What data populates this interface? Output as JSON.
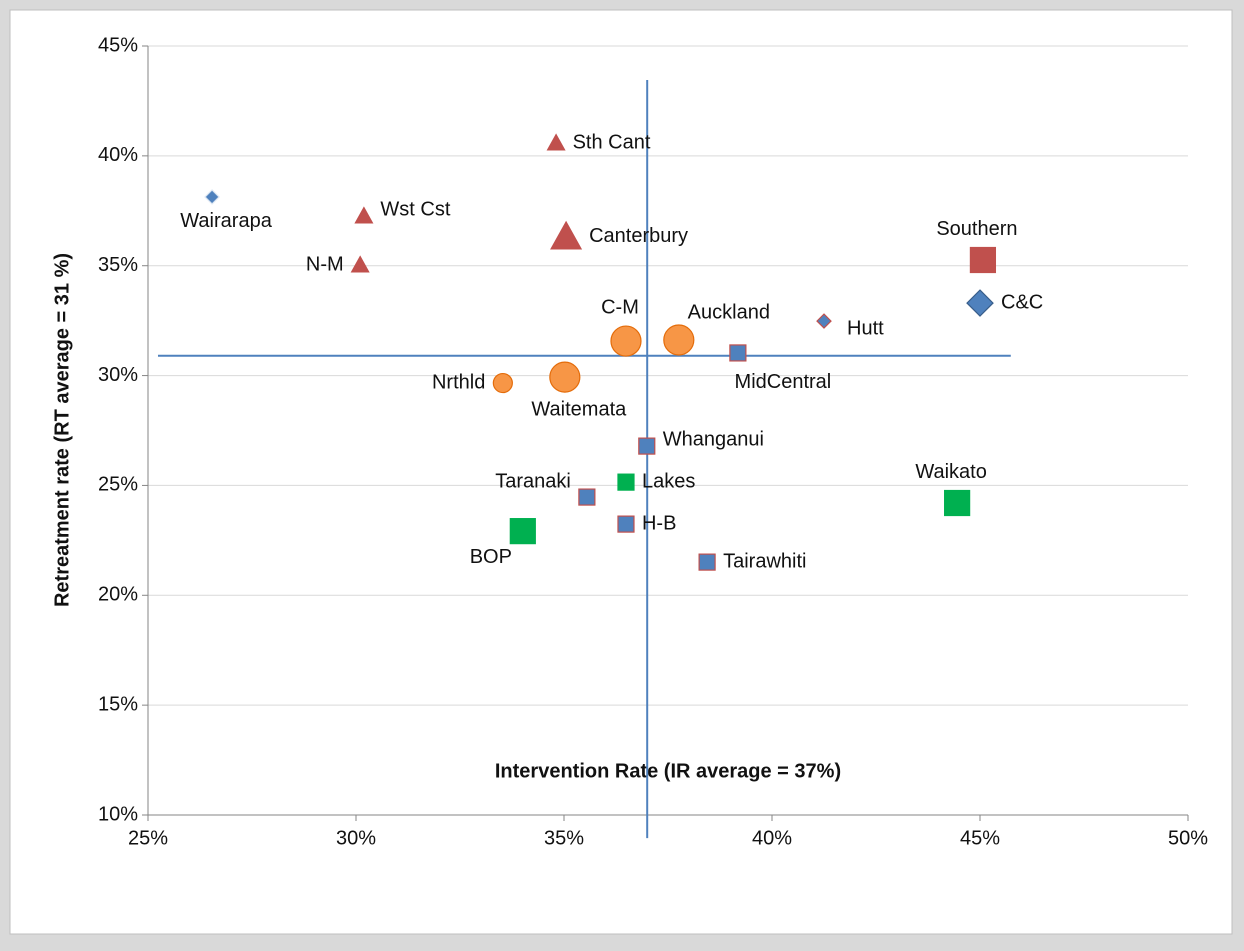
{
  "chart_data": {
    "type": "scatter",
    "xlabel": "Intervention Rate (IR average = 37%)",
    "ylabel": "Retreatment rate (RT average = 31 %)",
    "xlim": [
      25,
      50
    ],
    "ylim": [
      10,
      45
    ],
    "xticks": [
      {
        "value": 25,
        "label": "25%"
      },
      {
        "value": 30,
        "label": "30%"
      },
      {
        "value": 35,
        "label": "35%"
      },
      {
        "value": 40,
        "label": "40%"
      },
      {
        "value": 45,
        "label": "45%"
      },
      {
        "value": 50,
        "label": "50%"
      }
    ],
    "yticks": [
      {
        "value": 10,
        "label": "10%"
      },
      {
        "value": 15,
        "label": "15%"
      },
      {
        "value": 20,
        "label": "20%"
      },
      {
        "value": 25,
        "label": "25%"
      },
      {
        "value": 30,
        "label": "30%"
      },
      {
        "value": 35,
        "label": "35%"
      },
      {
        "value": 40,
        "label": "40%"
      },
      {
        "value": 45,
        "label": "45%"
      }
    ],
    "grid": true,
    "reference_lines": {
      "color": "#4f81bd",
      "x_average": 37,
      "x_average_span": [
        8.95,
        43.45
      ],
      "y_average": 30.9,
      "y_average_span": [
        25.24,
        45.74
      ]
    },
    "points": [
      {
        "label": "Wairarapa",
        "x": 26.54,
        "y": 38.13,
        "shape": "diamond",
        "size": "small",
        "color": "#4f81bd",
        "edge": "#dce6f2",
        "label_side": "below"
      },
      {
        "label": "Wst Cst",
        "x": 30.19,
        "y": 37.26,
        "shape": "triangle",
        "size": "small",
        "color": "#c0504d",
        "edge": "#c0504d",
        "label_side": "right-up"
      },
      {
        "label": "N-M",
        "x": 30.1,
        "y": 35.03,
        "shape": "triangle",
        "size": "small",
        "color": "#c0504d",
        "edge": "#c0504d",
        "label_side": "left"
      },
      {
        "label": "Sth Cant",
        "x": 34.81,
        "y": 40.58,
        "shape": "triangle",
        "size": "small",
        "color": "#c0504d",
        "edge": "#c0504d",
        "label_side": "right"
      },
      {
        "label": "Canterbury",
        "x": 35.05,
        "y": 36.31,
        "shape": "triangle",
        "size": "large",
        "color": "#c0504d",
        "edge": "#c0504d",
        "label_side": "right"
      },
      {
        "label": "Southern",
        "x": 45.07,
        "y": 35.26,
        "shape": "square",
        "size": "large",
        "color": "#c0504d",
        "edge": "#c0504d",
        "label_side": "above"
      },
      {
        "label": "C&C",
        "x": 45.0,
        "y": 33.3,
        "shape": "diamond",
        "size": "large",
        "color": "#4f81bd",
        "edge": "#385d8a",
        "label_side": "right"
      },
      {
        "label": "Hutt",
        "x": 41.25,
        "y": 32.48,
        "shape": "diamond",
        "size": "small",
        "color": "#4f81bd",
        "edge": "#c0504d",
        "label_side": "right-down"
      },
      {
        "label": "C-M",
        "x": 36.49,
        "y": 31.57,
        "shape": "circle",
        "size": "large",
        "color": "#f79646",
        "edge": "#e46c0a",
        "label_side": "above"
      },
      {
        "label": "Auckland",
        "x": 37.76,
        "y": 31.62,
        "shape": "circle",
        "size": "large",
        "color": "#f79646",
        "edge": "#e46c0a",
        "label_side": "above-right"
      },
      {
        "label": "MidCentral",
        "x": 39.18,
        "y": 31.03,
        "shape": "square",
        "size": "small",
        "color": "#4f81bd",
        "edge": "#c0504d",
        "label_side": "below-right"
      },
      {
        "label": "Nrthld",
        "x": 33.53,
        "y": 29.66,
        "shape": "circle",
        "size": "small",
        "color": "#f79646",
        "edge": "#e46c0a",
        "label_side": "left"
      },
      {
        "label": "Waitemata",
        "x": 35.02,
        "y": 29.93,
        "shape": "circle",
        "size": "large",
        "color": "#f79646",
        "edge": "#e46c0a",
        "label_side": "below"
      },
      {
        "label": "Whanganui",
        "x": 36.99,
        "y": 26.79,
        "shape": "square",
        "size": "small",
        "color": "#4f81bd",
        "edge": "#c0504d",
        "label_side": "right-up"
      },
      {
        "label": "Lakes",
        "x": 36.49,
        "y": 25.15,
        "shape": "square",
        "size": "small",
        "color": "#00b050",
        "edge": "#00b050",
        "label_side": "right"
      },
      {
        "label": "Taranaki",
        "x": 35.55,
        "y": 24.47,
        "shape": "square",
        "size": "small",
        "color": "#4f81bd",
        "edge": "#c0504d",
        "label_side": "above-left"
      },
      {
        "label": "H-B",
        "x": 36.49,
        "y": 23.24,
        "shape": "square",
        "size": "small",
        "color": "#4f81bd",
        "edge": "#c0504d",
        "label_side": "right"
      },
      {
        "label": "BOP",
        "x": 34.01,
        "y": 22.92,
        "shape": "square",
        "size": "large",
        "color": "#00b050",
        "edge": "#00b050",
        "label_side": "below-left"
      },
      {
        "label": "Tairawhiti",
        "x": 38.44,
        "y": 21.51,
        "shape": "square",
        "size": "small",
        "color": "#4f81bd",
        "edge": "#c0504d",
        "label_side": "right"
      },
      {
        "label": "Waikato",
        "x": 44.45,
        "y": 24.2,
        "shape": "square",
        "size": "large",
        "color": "#00b050",
        "edge": "#00b050",
        "label_side": "above"
      }
    ]
  }
}
